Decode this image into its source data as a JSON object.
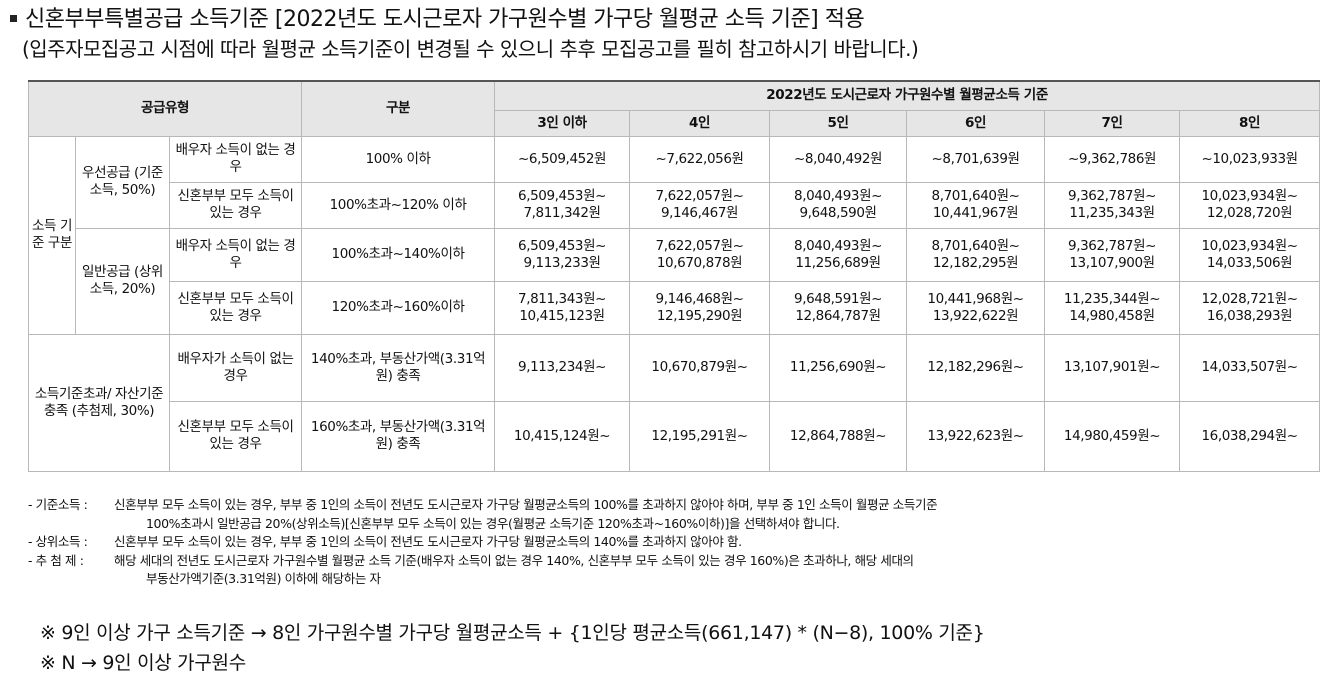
{
  "title": "신혼부부특별공급 소득기준 [2022년도 도시근로자 가구원수별 가구당 월평균 소득 기준] 적용",
  "subtitle": "(입주자모집공고 시점에 따라 월평균 소득기준이 변경될 수 있으니 추후 모집공고를 필히 참고하시기 바랍니다.)",
  "table": {
    "header_type": "공급유형",
    "header_div": "구분",
    "header_income": "2022년도 도시근로자 가구원수별 월평균소득 기준",
    "household_sizes": [
      "3인 이하",
      "4인",
      "5인",
      "6인",
      "7인",
      "8인"
    ],
    "income_group": "소득 기준 구분",
    "priority": {
      "label": "우선공급 (기준소득, 50%)",
      "rows": [
        {
          "case": "배우자 소득이 없는 경우",
          "criterion": "100% 이하",
          "values": [
            "~6,509,452원",
            "~7,622,056원",
            "~8,040,492원",
            "~8,701,639원",
            "~9,362,786원",
            "~10,023,933원"
          ]
        },
        {
          "case": "신혼부부 모두 소득이 있는 경우",
          "criterion": "100%초과~120% 이하",
          "values": [
            "6,509,453원~ 7,811,342원",
            "7,622,057원~ 9,146,467원",
            "8,040,493원~ 9,648,590원",
            "8,701,640원~ 10,441,967원",
            "9,362,787원~ 11,235,343원",
            "10,023,934원~ 12,028,720원"
          ]
        }
      ]
    },
    "general": {
      "label": "일반공급 (상위소득, 20%)",
      "rows": [
        {
          "case": "배우자 소득이 없는 경우",
          "criterion": "100%초과~140%이하",
          "values": [
            "6,509,453원~ 9,113,233원",
            "7,622,057원~ 10,670,878원",
            "8,040,493원~ 11,256,689원",
            "8,701,640원~ 12,182,295원",
            "9,362,787원~ 13,107,900원",
            "10,023,934원~ 14,033,506원"
          ]
        },
        {
          "case": "신혼부부 모두 소득이 있는 경우",
          "criterion": "120%초과~160%이하",
          "values": [
            "7,811,343원~ 10,415,123원",
            "9,146,468원~ 12,195,290원",
            "9,648,591원~ 12,864,787원",
            "10,441,968원~ 13,922,622원",
            "11,235,344원~ 14,980,458원",
            "12,028,721원~ 16,038,293원"
          ]
        }
      ]
    },
    "lottery": {
      "label": "소득기준초과/ 자산기준충족 (추첨제, 30%)",
      "rows": [
        {
          "case": "배우자가 소득이 없는 경우",
          "criterion": "140%초과, 부동산가액(3.31억원) 충족",
          "values": [
            "9,113,234원~",
            "10,670,879원~",
            "11,256,690원~",
            "12,182,296원~",
            "13,107,901원~",
            "14,033,507원~"
          ]
        },
        {
          "case": "신혼부부 모두 소득이 있는 경우",
          "criterion": "160%초과, 부동산가액(3.31억원) 충족",
          "values": [
            "10,415,124원~",
            "12,195,291원~",
            "12,864,788원~",
            "13,922,623원~",
            "14,980,459원~",
            "16,038,294원~"
          ]
        }
      ]
    }
  },
  "notes": [
    {
      "key": "- 기준소득 :",
      "text": "신혼부부 모두 소득이 있는 경우, 부부 중 1인의 소득이 전년도 도시근로자 가구당 월평균소득의 100%를 초과하지 않아야 하며, 부부 중 1인 소득이 월평균 소득기준",
      "cont": "100%초과시 일반공급 20%(상위소득)[신혼부부 모두 소득이 있는 경우(월평균 소득기준 120%초과~160%이하)]을 선택하셔야 합니다."
    },
    {
      "key": "- 상위소득 :",
      "text": "신혼부부 모두 소득이 있는 경우, 부부 중 1인의 소득이 전년도 도시근로자 가구당 월평균소득의 140%를 초과하지 않아야 함.",
      "cont": ""
    },
    {
      "key": "- 추 첨 제  :",
      "text": "해당 세대의 전년도 도시근로자 가구원수별 월평균 소득 기준(배우자 소득이 없는 경우 140%, 신혼부부 모두 소득이 있는 경우 160%)은 초과하나, 해당 세대의",
      "cont": "부동산가액기준(3.31억원) 이하에 해당하는 자"
    }
  ],
  "formula1": "※ 9인 이상 가구 소득기준 → 8인 가구원수별 가구당 월평균소득 + {1인당 평균소득(661,147) * (N−8), 100% 기준}",
  "formula2": "※ N → 9인 이상 가구원수"
}
